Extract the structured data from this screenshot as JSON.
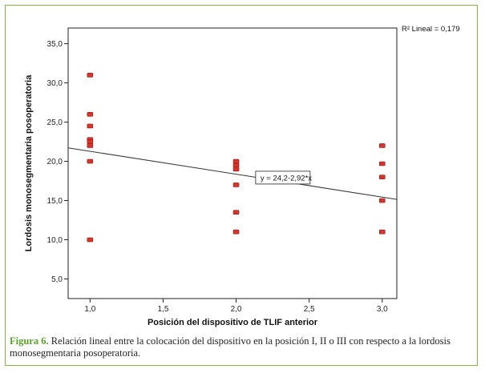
{
  "figure": {
    "label": "Figura 6.",
    "caption": " Relación lineal entre la colocación del dispositivo en la posición I, II o III con respecto a la lordosis monosegmentaria posoperatoria."
  },
  "colors": {
    "frame": "#7dba3c",
    "caption_label": "#5aa02c",
    "marker": "#d9342b",
    "line": "#333333"
  },
  "chart_data": {
    "type": "scatter",
    "xlabel": "Posición del dispositivo de TLIF anterior",
    "ylabel": "Lordosis monosegmentaria posoperatoria",
    "xlim": [
      0.85,
      3.1
    ],
    "ylim": [
      2.5,
      37.0
    ],
    "x_ticks": [
      1.0,
      1.5,
      2.0,
      2.5,
      3.0
    ],
    "x_tick_labels": [
      "1,0",
      "1,5",
      "2,0",
      "2,5",
      "3,0"
    ],
    "y_ticks": [
      5,
      10,
      15,
      20,
      25,
      30,
      35
    ],
    "y_tick_labels": [
      "5,0",
      "10,0",
      "15,0",
      "20,0",
      "25,0",
      "30,0",
      "35,0"
    ],
    "points": [
      {
        "x": 1,
        "y": 31.0
      },
      {
        "x": 1,
        "y": 26.0
      },
      {
        "x": 1,
        "y": 24.5
      },
      {
        "x": 1,
        "y": 22.8
      },
      {
        "x": 1,
        "y": 22.5
      },
      {
        "x": 1,
        "y": 22.0
      },
      {
        "x": 1,
        "y": 20.0
      },
      {
        "x": 1,
        "y": 10.0
      },
      {
        "x": 2,
        "y": 20.0
      },
      {
        "x": 2,
        "y": 19.5
      },
      {
        "x": 2,
        "y": 19.0
      },
      {
        "x": 2,
        "y": 17.0
      },
      {
        "x": 2,
        "y": 13.5
      },
      {
        "x": 2,
        "y": 11.0
      },
      {
        "x": 3,
        "y": 22.0
      },
      {
        "x": 3,
        "y": 19.7
      },
      {
        "x": 3,
        "y": 18.0
      },
      {
        "x": 3,
        "y": 15.0
      },
      {
        "x": 3,
        "y": 11.0
      }
    ],
    "fit": {
      "intercept": 24.2,
      "slope": -2.92,
      "equation": "y = 24,2-2,92*x",
      "equation_x": 2.15
    },
    "r2_label": "R² Lineal = 0,179",
    "grid": false,
    "legend": "none"
  }
}
